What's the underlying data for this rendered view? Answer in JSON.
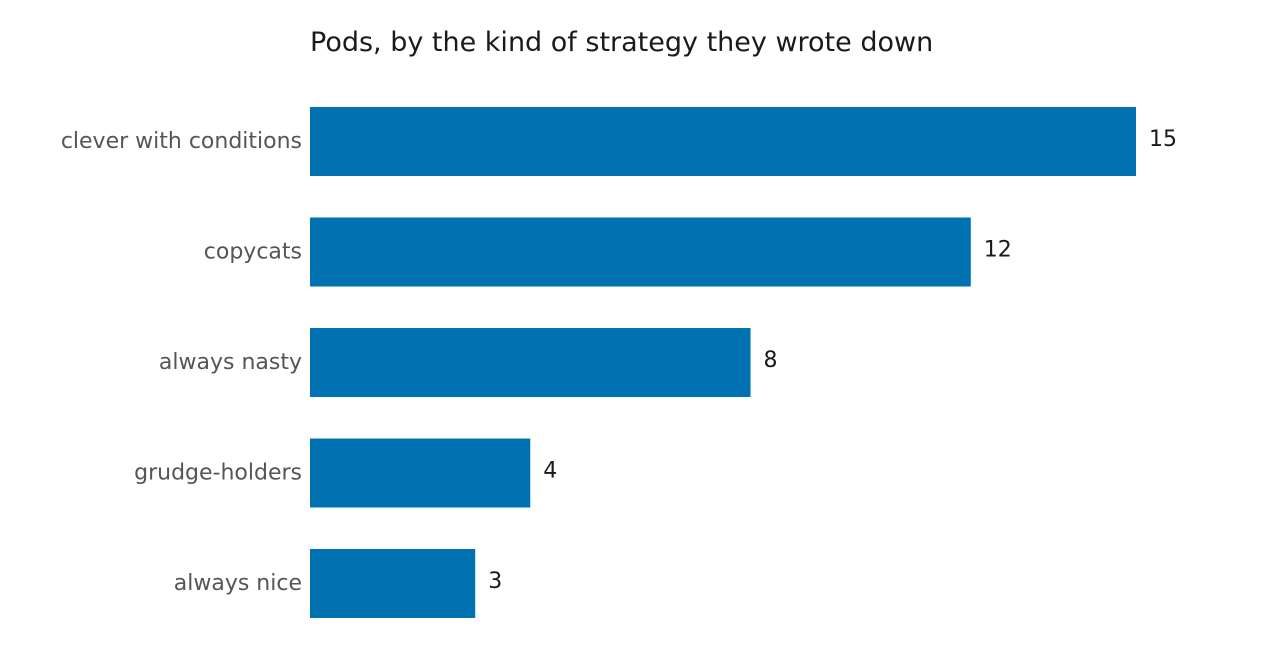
{
  "chart_data": {
    "type": "bar",
    "orientation": "horizontal",
    "title": "Pods, by the kind of strategy they wrote down",
    "categories": [
      "clever with conditions",
      "copycats",
      "always nasty",
      "grudge-holders",
      "always nice"
    ],
    "values": [
      15,
      12,
      8,
      4,
      3
    ],
    "xlabel": "",
    "ylabel": "",
    "xlim": [
      0,
      15
    ],
    "grid": false,
    "legend": "none",
    "data_labels": true,
    "bar_color": "#0072b2"
  }
}
